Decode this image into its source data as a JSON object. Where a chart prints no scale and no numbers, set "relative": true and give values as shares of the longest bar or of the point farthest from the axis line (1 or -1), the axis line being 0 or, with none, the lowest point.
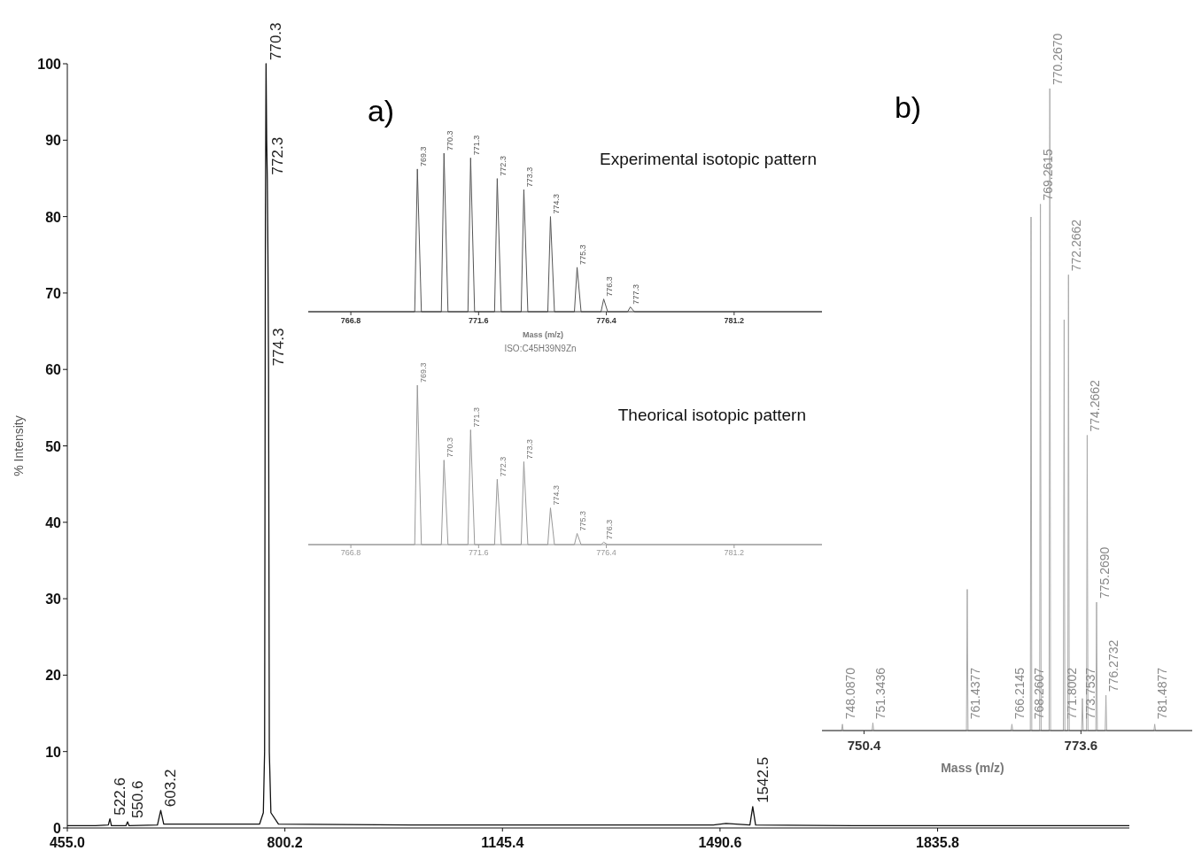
{
  "chart_data": [
    {
      "type": "line",
      "ylabel": "% Intensity",
      "color": "#111111",
      "x": [
        455,
        500,
        520,
        522.6,
        525,
        548,
        550.6,
        553,
        598,
        603.2,
        608,
        700,
        760,
        766,
        768,
        769.3,
        770.3,
        771.3,
        772.3,
        773.3,
        774.3,
        775.5,
        778,
        790,
        1000,
        1480,
        1500,
        1538,
        1542.5,
        1547,
        1700,
        2140
      ],
      "values": [
        0.3,
        0.3,
        0.4,
        1.2,
        0.3,
        0.3,
        0.8,
        0.3,
        0.4,
        2.3,
        0.5,
        0.5,
        0.5,
        2,
        10,
        80,
        100,
        90,
        85,
        75,
        60,
        10,
        2,
        0.5,
        0.4,
        0.4,
        0.6,
        0.4,
        2.8,
        0.4,
        0.3,
        0.3
      ],
      "xlim": [
        455,
        2140
      ],
      "xticks": [
        {
          "value": 455,
          "label": "455.0"
        },
        800.2,
        1145.4,
        1490.6,
        1835.8
      ],
      "ylim": [
        0,
        100
      ],
      "yticks": [
        0,
        10,
        20,
        30,
        40,
        50,
        60,
        70,
        80,
        90,
        100
      ],
      "annotations": [
        {
          "text": "770.3",
          "x": 770.3,
          "y": 100
        },
        {
          "text": "772.3",
          "x": 772.3,
          "y": 85
        },
        {
          "text": "774.3",
          "x": 774.3,
          "y": 60
        },
        {
          "text": "522.6",
          "x": 522.6,
          "y": 1.2
        },
        {
          "text": "550.6",
          "x": 550.6,
          "y": 0.8
        },
        {
          "text": "603.2",
          "x": 603.2,
          "y": 2.3
        },
        {
          "text": "1542.5",
          "x": 1542.5,
          "y": 2.8
        }
      ]
    },
    {
      "type": "line",
      "relative": true,
      "title": "Experimental isotopic pattern",
      "xlabel": "Mass (m/z)",
      "color": "#555555",
      "tick_labels": "x",
      "x": [
        765.2,
        769.2,
        769.3,
        769.45,
        770.2,
        770.3,
        770.45,
        771.2,
        771.3,
        771.45,
        772.2,
        772.3,
        772.45,
        773.2,
        773.3,
        773.45,
        774.2,
        774.3,
        774.45,
        775.2,
        775.3,
        775.45,
        776.2,
        776.3,
        776.45,
        777.2,
        777.3,
        777.45,
        784.5
      ],
      "values": [
        0,
        0,
        0.9,
        0,
        0,
        1,
        0,
        0,
        0.97,
        0,
        0,
        0.84,
        0,
        0,
        0.77,
        0,
        0,
        0.6,
        0,
        0,
        0.28,
        0,
        0,
        0.08,
        0,
        0,
        0.03,
        0,
        0
      ],
      "xlim": [
        765.2,
        784.5
      ],
      "xticks": [
        766.8,
        771.6,
        776.4,
        781.2
      ],
      "annotations": [
        "a)",
        "ISO:C45H39N9Zn",
        {
          "text": "769.3",
          "x": 769.3,
          "y": 0.9
        },
        {
          "text": "770.3",
          "x": 770.3,
          "y": 1
        },
        {
          "text": "771.3",
          "x": 771.3,
          "y": 0.97
        },
        {
          "text": "772.3",
          "x": 772.3,
          "y": 0.84
        },
        {
          "text": "773.3",
          "x": 773.3,
          "y": 0.77
        },
        {
          "text": "774.3",
          "x": 774.3,
          "y": 0.6
        },
        {
          "text": "775.3",
          "x": 775.3,
          "y": 0.28
        },
        {
          "text": "776.3",
          "x": 776.3,
          "y": 0.08
        },
        {
          "text": "777.3",
          "x": 777.3,
          "y": 0.03
        }
      ]
    },
    {
      "type": "line",
      "relative": true,
      "title": "Theorical isotopic pattern",
      "color": "#999999",
      "tick_labels": "x",
      "x": [
        765.2,
        769.2,
        769.3,
        769.45,
        770.2,
        770.3,
        770.45,
        771.2,
        771.3,
        771.45,
        772.2,
        772.3,
        772.45,
        773.2,
        773.3,
        773.45,
        774.2,
        774.3,
        774.45,
        775.2,
        775.3,
        775.45,
        776.2,
        776.3,
        776.45,
        784.5
      ],
      "values": [
        0,
        0,
        1,
        0,
        0,
        0.53,
        0,
        0,
        0.72,
        0,
        0,
        0.41,
        0,
        0,
        0.52,
        0,
        0,
        0.23,
        0,
        0,
        0.07,
        0,
        0,
        0.015,
        0,
        0
      ],
      "xlim": [
        765.2,
        784.5
      ],
      "xticks": [
        766.8,
        771.6,
        776.4,
        781.2
      ],
      "annotations": [
        {
          "text": "769.3",
          "x": 769.3,
          "y": 1
        },
        {
          "text": "770.3",
          "x": 770.3,
          "y": 0.53
        },
        {
          "text": "771.3",
          "x": 771.3,
          "y": 0.72
        },
        {
          "text": "772.3",
          "x": 772.3,
          "y": 0.41
        },
        {
          "text": "773.3",
          "x": 773.3,
          "y": 0.52
        },
        {
          "text": "774.3",
          "x": 774.3,
          "y": 0.23
        },
        {
          "text": "775.3",
          "x": 775.3,
          "y": 0.07
        },
        {
          "text": "776.3",
          "x": 776.3,
          "y": 0.015
        }
      ]
    },
    {
      "type": "line",
      "relative": true,
      "xlabel": "Mass (m/z)",
      "color": "#aaaaaa",
      "tick_labels": "x",
      "x": [
        745.9,
        748.0,
        748.087,
        748.17,
        751.26,
        751.3436,
        751.43,
        761.35,
        761.4377,
        761.52,
        766.13,
        766.2145,
        766.3,
        768.18,
        768.2607,
        768.34,
        769.18,
        769.2615,
        769.34,
        770.19,
        770.267,
        770.35,
        771.72,
        771.8002,
        771.88,
        772.19,
        772.2662,
        772.35,
        773.67,
        773.7537,
        773.84,
        774.19,
        774.2662,
        774.35,
        775.19,
        775.269,
        775.35,
        776.19,
        776.2732,
        776.35,
        781.41,
        781.4877,
        781.57,
        785.5
      ],
      "values": [
        0,
        0,
        0.01,
        0,
        0,
        0.012,
        0,
        0,
        0.22,
        0,
        0,
        0.01,
        0,
        0,
        0.8,
        0,
        0,
        0.82,
        0,
        0,
        1,
        0,
        0,
        0.64,
        0,
        0,
        0.71,
        0,
        0,
        0.05,
        0,
        0,
        0.46,
        0,
        0,
        0.2,
        0,
        0,
        0.055,
        0,
        0,
        0.01,
        0,
        0
      ],
      "xlim": [
        745.9,
        785.5
      ],
      "xticks": [
        750.4,
        773.6
      ],
      "annotations": [
        "b)",
        {
          "text": "770.2670",
          "x": 770.267,
          "y": 1
        },
        {
          "text": "769.2615",
          "x": 769.2615,
          "y": 0.82
        },
        {
          "text": "772.2662",
          "x": 772.2662,
          "y": 0.71
        },
        {
          "text": "774.2662",
          "x": 774.2662,
          "y": 0.46
        },
        {
          "text": "775.2690",
          "x": 775.269,
          "y": 0.2
        },
        {
          "text": "776.2732",
          "x": 776.2732,
          "y": 0.055
        },
        {
          "text": "748.0870",
          "x": 748.087,
          "y": 0.012
        },
        {
          "text": "751.3436",
          "x": 751.3436,
          "y": 0.012
        },
        {
          "text": "761.4377",
          "x": 761.4377,
          "y": 0.012
        },
        {
          "text": "766.2145",
          "x": 766.2145,
          "y": 0.012
        },
        {
          "text": "768.2607",
          "x": 768.2607,
          "y": 0.012
        },
        {
          "text": "771.8002",
          "x": 771.8002,
          "y": 0.012
        },
        {
          "text": "773.7537",
          "x": 773.7537,
          "y": 0.012
        },
        {
          "text": "781.4877",
          "x": 781.4877,
          "y": 0.012
        }
      ]
    }
  ]
}
